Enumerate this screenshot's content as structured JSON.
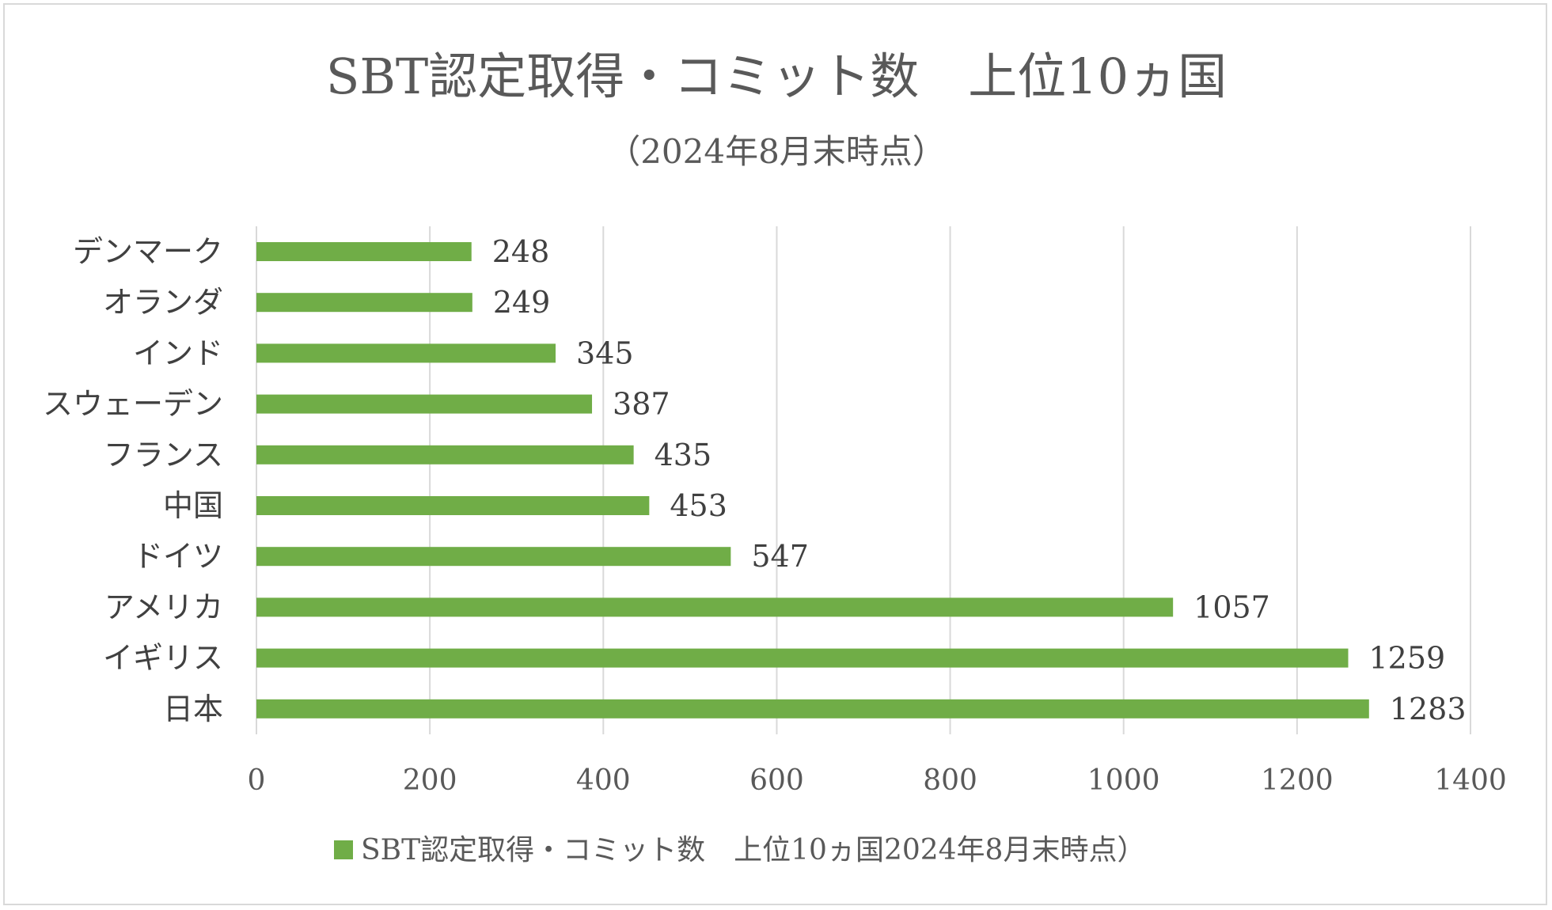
{
  "chart_data": {
    "type": "bar",
    "orientation": "horizontal",
    "title": "SBT認定取得・コミット数　上位10ヵ国",
    "subtitle": "（2024年8月末時点）",
    "categories": [
      "デンマーク",
      "オランダ",
      "インド",
      "スウェーデン",
      "フランス",
      "中国",
      "ドイツ",
      "アメリカ",
      "イギリス",
      "日本"
    ],
    "series": [
      {
        "name": "SBT認定取得・コミット数　上位10ヵ国2024年8月末時点）",
        "values": [
          248,
          249,
          345,
          387,
          435,
          453,
          547,
          1057,
          1259,
          1283
        ],
        "color": "#70ad47"
      }
    ],
    "xlim": [
      0,
      1400
    ],
    "xticks": [
      0,
      200,
      400,
      600,
      800,
      1000,
      1200,
      1400
    ],
    "grid": "vertical",
    "gridColor": "#d9d9d9",
    "legend_position": "bottom",
    "data_labels": true
  }
}
